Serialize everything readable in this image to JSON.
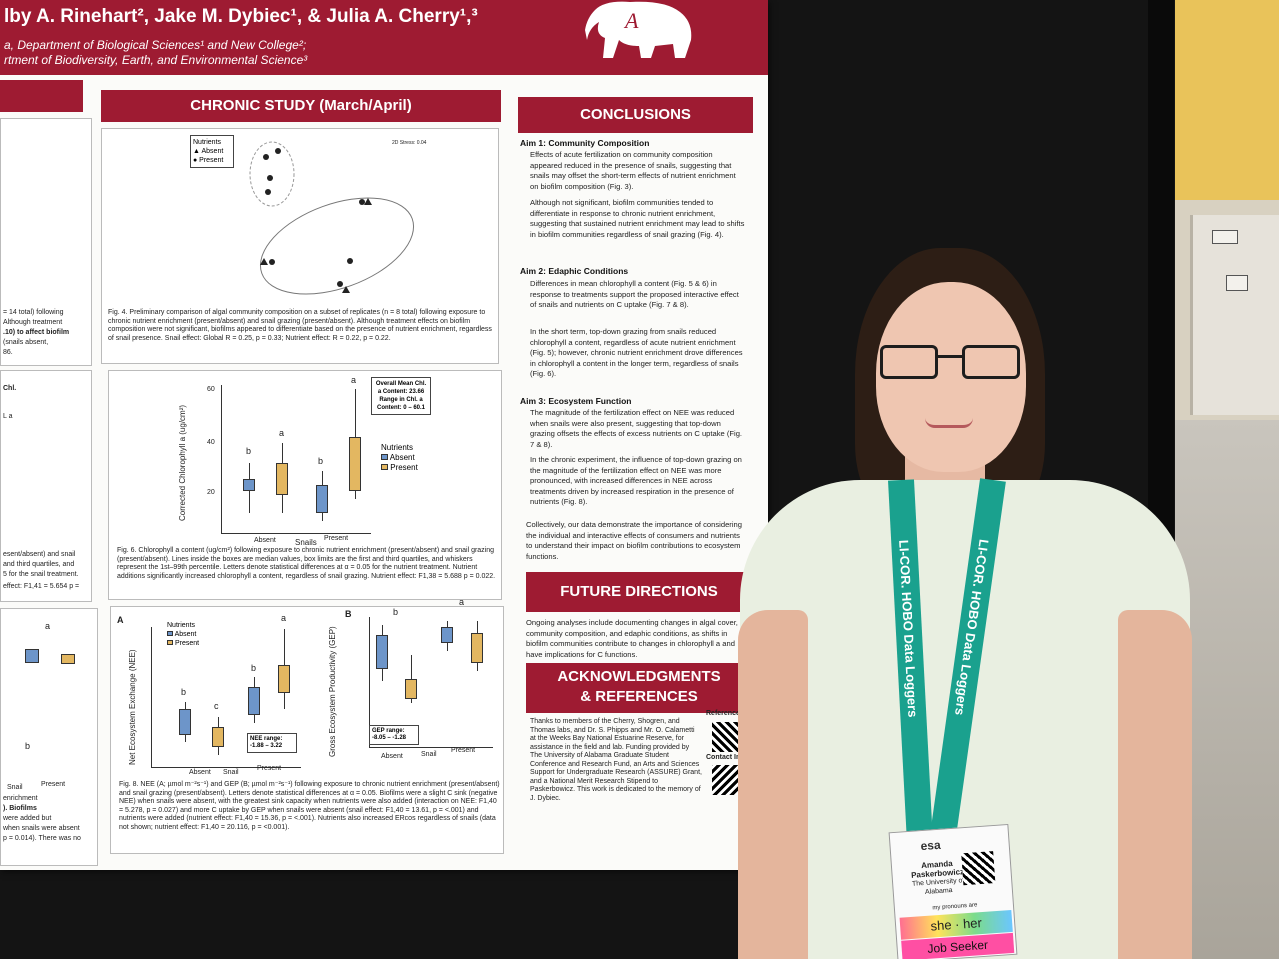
{
  "poster": {
    "authors": "lby A. Rinehart², Jake M. Dybiec¹, & Julia A. Cherry¹,³",
    "affiliation_1": "a, Department of Biological Sciences¹ and New College²;",
    "affiliation_2": "rtment of Biodiversity, Earth, and Environmental Science³",
    "chronic_heading": "CHRONIC STUDY (March/April)",
    "conclusions_heading": "CONCLUSIONS",
    "future_heading": "FUTURE DIRECTIONS",
    "ack_heading_1": "ACKNOWLEDGMENTS",
    "ack_heading_2": "& REFERENCES",
    "fig4_caption": "Fig. 4. Preliminary comparison of algal community composition on a subset of replicates (n = 8 total) following exposure to chronic nutrient enrichment (present/absent) and snail grazing (present/absent). Although treatment effects on biofilm composition were not significant, biofilms appeared to differentiate based on the presence of nutrient enrichment, regardless of snail presence. Snail effect: Global R = 0.25, p = 0.33; Nutrient effect: R = 0.22, p = 0.22.",
    "fig6_caption": "Fig. 6. Chlorophyll a content (ug/cm²) following exposure to chronic nutrient enrichment (present/absent) and snail grazing (present/absent). Lines inside the boxes are median values, box limits are the first and third quartiles, and whiskers represent the 1st–99th percentile. Letters denote statistical differences at α = 0.05 for the nutrient treatment. Nutrient additions significantly increased chlorophyll a content, regardless of snail grazing. Nutrient effect: F1,38 = 5.688 p = 0.022.",
    "fig8_caption": "Fig. 8. NEE (A; µmol m⁻²s⁻¹) and GEP (B; µmol m⁻²s⁻¹) following exposure to chronic nutrient enrichment (present/absent) and snail grazing (present/absent). Letters denote statistical differences at α = 0.05. Biofilms were a slight C sink (negative NEE) when snails were absent, with the greatest sink capacity when nutrients were also added (interaction on NEE: F1,40 = 5.278, p = 0.027) and more C uptake by GEP when snails were absent (snail effect: F1,40 = 13.61, p = <.001) and nutrients were added (nutrient effect: F1,40 = 15.36, p = <.001). Nutrients also increased ERcos regardless of snails (data not shown; nutrient effect: F1,40 = 20.116, p = <0.001).",
    "left_partial_1": "= 14 total) following",
    "left_partial_2": "Although treatment",
    "left_partial_3": ".10) to affect biofilm",
    "left_partial_4": "(snails absent,",
    "left_partial_5": "86.",
    "left_partial_6": "esent/absent) and snail",
    "left_partial_7": "and third quartiles, and",
    "left_partial_8": "5 for the snail treatment.",
    "left_partial_9": "effect: F1,41 = 5.654 p =",
    "left_partial_10": "enrichment",
    "left_partial_11": "). Biofilms",
    "left_partial_12": "were added but",
    "left_partial_13": "when snails were absent",
    "left_partial_14": "p = 0.014). There was no",
    "aim1_title": "Aim 1: Community Composition",
    "aim1_b1": "Effects of acute fertilization on community composition appeared reduced in the presence of snails, suggesting that snails may offset the short-term effects of nutrient enrichment on biofilm composition (Fig. 3).",
    "aim1_b2": "Although not significant, biofilm communities tended to differentiate in response to chronic nutrient enrichment, suggesting that sustained nutrient enrichment may lead to shifts in biofilm communities regardless of snail grazing (Fig. 4).",
    "aim2_title": "Aim 2: Edaphic Conditions",
    "aim2_b1": "Differences in mean chlorophyll a content (Fig. 5 & 6) in response to treatments support the proposed interactive effect of snails and nutrients on C uptake (Fig. 7 & 8).",
    "aim2_b2": "In the short term, top-down grazing from snails reduced chlorophyll a content, regardless of acute nutrient enrichment (Fig. 5); however, chronic nutrient enrichment drove differences in chlorophyll a content in the longer term, regardless of snails (Fig. 6).",
    "aim3_title": "Aim 3: Ecosystem Function",
    "aim3_b1": "The magnitude of the fertilization effect on NEE was reduced when snails were also present, suggesting that top-down grazing offsets the effects of excess nutrients on C uptake (Fig. 7 & 8).",
    "aim3_b2": "In the chronic experiment, the influence of top-down grazing on the magnitude of the fertilization effect on NEE was more pronounced, with increased differences in NEE across treatments driven by increased respiration in the presence of nutrients (Fig. 8).",
    "collective": "Collectively, our data demonstrate the importance of considering the individual and interactive effects of consumers and nutrients to understand their impact on biofilm contributions to ecosystem functions.",
    "future_text": "Ongoing analyses include documenting changes in algal cover, community composition, and edaphic conditions, as shifts in biofilm communities contribute to changes in chlorophyll a and have implications for C functions.",
    "ack_text": "Thanks to members of the Cherry, Shogren, and Thomas labs, and Dr. S. Phipps and Mr. O. Calametti at the Weeks Bay National Estuarine Reserve, for assistance in the field and lab. Funding provided by The University of Alabama Graduate Student Conference and Research Fund, an Arts and Sciences Support for Undergraduate Research (ASSURE) Grant, and a National Merit Research Stipend to Paskerbowicz. This work is dedicated to the memory of J. Dybiec.",
    "references_label": "References",
    "contact_label": "Contact Info",
    "nmds_legend_title": "Nutrients",
    "nmds_legend_absent": "▲ Absent",
    "nmds_legend_present": "● Present",
    "nmds_stress": "2D Stress: 0.04",
    "chl_ylabel": "Corrected Chlorophyll a (ug/cm²)",
    "chl_xlabel": "Snails",
    "chl_xtick_1": "Absent",
    "chl_xtick_2": "Present",
    "chl_letter_1": "b",
    "chl_letter_2": "a",
    "chl_letter_3": "b",
    "chl_letter_4": "a",
    "chl_ytick_1": "60",
    "chl_ytick_2": "40",
    "chl_ytick_3": "20",
    "chl_box_title": "Overall Mean Chl. a Content: 23.66",
    "chl_box_range": "Range in Chl. a Content: 0 – 60.1",
    "chl_legend_title": "Nutrients",
    "chl_legend_absent": "Absent",
    "chl_legend_present": "Present",
    "nee_label_a": "A",
    "nee_ylabel": "Net Ecosystem Exchange (NEE)",
    "nee_legend_title": "Nutrients",
    "nee_legend_absent": "Absent",
    "nee_legend_present": "Present",
    "nee_letter_1": "b",
    "nee_letter_2": "c",
    "nee_letter_3": "b",
    "nee_letter_4": "a",
    "nee_range": "NEE range: -1.88 – 3.22",
    "nee_xtick_1": "Absent",
    "nee_xtick_2": "Snail",
    "nee_xtick_3": "Present",
    "gep_label_b": "B",
    "gep_ylabel": "Gross Ecosystem Productivity (GEP)",
    "gep_letter_b": "b",
    "gep_letter_a": "a",
    "gep_range": "GEP range: -8.05 – -1.28",
    "gep_xtick_1": "Absent",
    "gep_xtick_2": "Snail",
    "gep_xtick_3": "Present",
    "left_x_1": "Snail",
    "left_x_2": "Present",
    "left_letter_a": "a",
    "left_letter_b": "b",
    "left_chl_1": "Chl.",
    "left_chl_2": "L a"
  },
  "person": {
    "lanyard_text_1": "LI-COR. HOBO Data Loggers",
    "lanyard_text_2": "LI-COR. HOBO Data Loggers",
    "badge_org": "esa",
    "badge_name": "Amanda Paskerbowicz",
    "badge_inst": "The University of Alabama",
    "pronoun_header": "my pronouns are",
    "pronouns": "she · her",
    "job_seeker": "Job Seeker"
  },
  "colors": {
    "crimson": "#9e1b32",
    "absent_blue": "#6d95c9",
    "present_tan": "#e3b761",
    "lanyard_teal": "#1aa18e"
  }
}
